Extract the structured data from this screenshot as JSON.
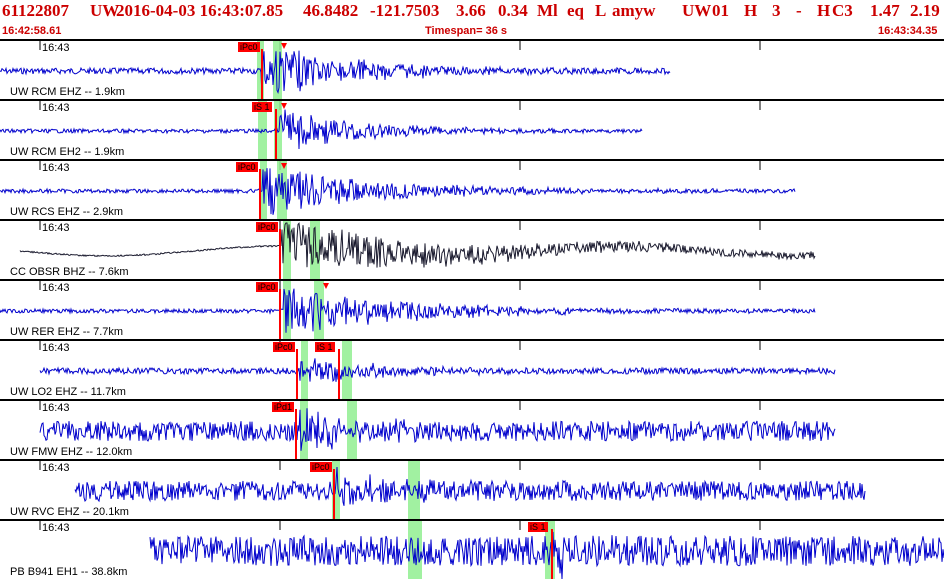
{
  "header": {
    "event_id": "61122807",
    "network": "UW",
    "origin_time": "2016-04-03 16:43:07.85",
    "lat": "46.8482",
    "lon": "-121.7503",
    "depth": "3.66",
    "mag": "0.34",
    "mag_type": "Ml",
    "etype": "eq",
    "loc_flag": "L",
    "author": "amyw",
    "source": "UW",
    "version": "01",
    "quality": "H",
    "phases": "3",
    "dash": "-",
    "rms_flag": "H",
    "subsource": "C3",
    "val1": "1.47",
    "val2": "2.19"
  },
  "subheader": {
    "start": "16:42:58.61",
    "timespan": "Timespan=  36 s",
    "end": "16:43:34.35"
  },
  "colors": {
    "header": "#cc0000",
    "trace_blue": "#0000cc",
    "trace_dark": "#1a1a2e",
    "pick": "#ff0000",
    "window": "#90ee90"
  },
  "traces": [
    {
      "label": "UW RCM EHZ -- 1.9km",
      "time": "16:43",
      "pick": "iPc0"
    },
    {
      "label": "UW RCM EH2 -- 1.9km",
      "time": "16:43",
      "pick": "iS 1"
    },
    {
      "label": "UW RCS EHZ -- 2.9km",
      "time": "16:43",
      "pick": "iPc0"
    },
    {
      "label": "CC OBSR BHZ -- 7.6km",
      "time": "16:43",
      "pick": "iPc0"
    },
    {
      "label": "UW RER EHZ -- 7.7km",
      "time": "16:43",
      "pick": "iPc0"
    },
    {
      "label": "UW LO2 EHZ -- 11.7km",
      "time": "16:43",
      "pick": "iPc0",
      "pick2": "iS 1"
    },
    {
      "label": "UW FMW EHZ -- 12.0km",
      "time": "16:43",
      "pick": "iPd1"
    },
    {
      "label": "UW RVC EHZ -- 20.1km",
      "time": "16:43",
      "pick": "iPc0"
    },
    {
      "label": "PB B941 EH1 -- 38.8km",
      "time": "16:43",
      "pick": "iS 1"
    }
  ]
}
